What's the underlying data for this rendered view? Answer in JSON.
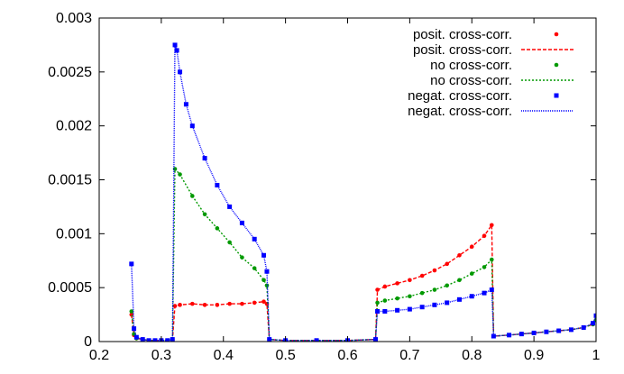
{
  "chart_data": {
    "type": "scatter",
    "title": "",
    "xlabel": "",
    "ylabel": "",
    "xlim": [
      0.2,
      1.0
    ],
    "ylim": [
      0,
      0.003
    ],
    "grid": false,
    "legend_position": "top-right",
    "x_ticks": [
      "0.2",
      "0.3",
      "0.4",
      "0.5",
      "0.6",
      "0.7",
      "0.8",
      "0.9",
      "1"
    ],
    "y_ticks": [
      "0",
      "0.0005",
      "0.001",
      "0.0015",
      "0.002",
      "0.0025",
      "0.003"
    ],
    "legend": [
      {
        "label": "posit. cross-corr.",
        "style": "points",
        "color": "#ff0000"
      },
      {
        "label": "posit. cross-corr.",
        "style": "line",
        "color": "#ff0000"
      },
      {
        "label": "no cross-corr.",
        "style": "points",
        "color": "#009900"
      },
      {
        "label": "no cross-corr.",
        "style": "line",
        "color": "#009900"
      },
      {
        "label": "negat. cross-corr.",
        "style": "points",
        "color": "#0000ff"
      },
      {
        "label": "negat. cross-corr.",
        "style": "line",
        "color": "#0000ff"
      }
    ],
    "series": [
      {
        "name": "posit. cross-corr.",
        "color": "#ff0000",
        "x": [
          0.252,
          0.256,
          0.26,
          0.27,
          0.28,
          0.29,
          0.3,
          0.31,
          0.318,
          0.322,
          0.33,
          0.35,
          0.37,
          0.39,
          0.41,
          0.43,
          0.45,
          0.465,
          0.47,
          0.474,
          0.5,
          0.55,
          0.6,
          0.645,
          0.648,
          0.66,
          0.68,
          0.7,
          0.72,
          0.74,
          0.76,
          0.78,
          0.8,
          0.82,
          0.832,
          0.835,
          0.86,
          0.88,
          0.9,
          0.92,
          0.94,
          0.96,
          0.98,
          0.995,
          1.0
        ],
        "y": [
          0.00025,
          6e-05,
          3e-05,
          2e-05,
          1e-05,
          1e-05,
          1e-05,
          1e-05,
          2e-05,
          0.00033,
          0.00034,
          0.00035,
          0.00034,
          0.00034,
          0.00035,
          0.00035,
          0.00036,
          0.00037,
          0.00035,
          2e-05,
          1e-05,
          1e-05,
          1e-05,
          2e-05,
          0.00048,
          0.00051,
          0.00054,
          0.00057,
          0.00061,
          0.00066,
          0.00072,
          0.0008,
          0.00088,
          0.00098,
          0.00108,
          5e-05,
          6e-05,
          7e-05,
          8e-05,
          9e-05,
          0.0001,
          0.00011,
          0.00013,
          0.00016,
          0.0002
        ]
      },
      {
        "name": "no cross-corr.",
        "color": "#009900",
        "x": [
          0.252,
          0.256,
          0.26,
          0.27,
          0.28,
          0.29,
          0.3,
          0.31,
          0.318,
          0.322,
          0.33,
          0.35,
          0.37,
          0.39,
          0.41,
          0.43,
          0.45,
          0.465,
          0.47,
          0.474,
          0.5,
          0.55,
          0.6,
          0.645,
          0.648,
          0.66,
          0.68,
          0.7,
          0.72,
          0.74,
          0.76,
          0.78,
          0.8,
          0.82,
          0.832,
          0.835,
          0.86,
          0.88,
          0.9,
          0.92,
          0.94,
          0.96,
          0.98,
          0.995,
          1.0
        ],
        "y": [
          0.00028,
          7e-05,
          3e-05,
          2e-05,
          1e-05,
          1e-05,
          1e-05,
          1e-05,
          2e-05,
          0.0016,
          0.00155,
          0.00135,
          0.00118,
          0.00105,
          0.00092,
          0.00078,
          0.00068,
          0.00057,
          0.00052,
          2e-05,
          1e-05,
          1e-05,
          1e-05,
          2e-05,
          0.00036,
          0.00038,
          0.0004,
          0.00042,
          0.00045,
          0.00048,
          0.00052,
          0.00057,
          0.00063,
          0.00069,
          0.00076,
          5e-05,
          6e-05,
          7e-05,
          8e-05,
          9e-05,
          0.0001,
          0.00011,
          0.00013,
          0.00016,
          0.0002
        ]
      },
      {
        "name": "negat. cross-corr.",
        "color": "#0000ff",
        "x": [
          0.252,
          0.256,
          0.26,
          0.27,
          0.28,
          0.29,
          0.3,
          0.31,
          0.318,
          0.322,
          0.325,
          0.33,
          0.34,
          0.35,
          0.37,
          0.39,
          0.41,
          0.43,
          0.45,
          0.465,
          0.47,
          0.474,
          0.5,
          0.55,
          0.6,
          0.645,
          0.648,
          0.66,
          0.68,
          0.7,
          0.72,
          0.74,
          0.76,
          0.78,
          0.8,
          0.82,
          0.832,
          0.835,
          0.86,
          0.88,
          0.9,
          0.92,
          0.94,
          0.96,
          0.98,
          0.995,
          1.0
        ],
        "y": [
          0.00072,
          0.00012,
          4e-05,
          2e-05,
          1e-05,
          1e-05,
          1e-05,
          1e-05,
          2e-05,
          0.00275,
          0.0027,
          0.0025,
          0.0022,
          0.002,
          0.0017,
          0.00145,
          0.00125,
          0.0011,
          0.00095,
          0.0008,
          0.00065,
          2e-05,
          1e-05,
          1e-05,
          1e-05,
          2e-05,
          0.00028,
          0.00028,
          0.00029,
          0.0003,
          0.00032,
          0.00034,
          0.00036,
          0.00039,
          0.00042,
          0.00045,
          0.00048,
          5e-05,
          6e-05,
          7e-05,
          8e-05,
          9e-05,
          0.0001,
          0.00011,
          0.00013,
          0.00017,
          0.00024
        ]
      }
    ]
  }
}
